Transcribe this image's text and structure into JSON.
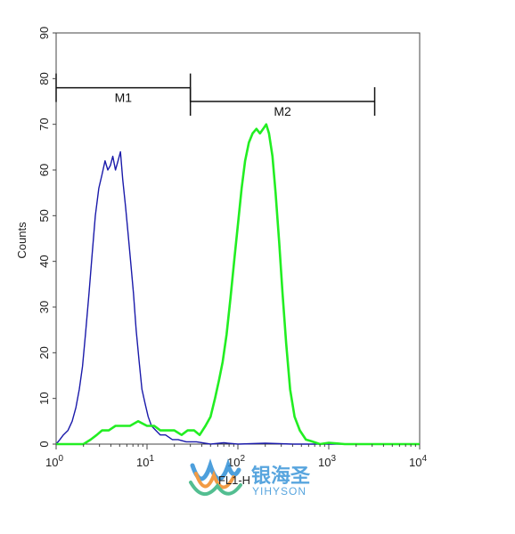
{
  "chart_data": {
    "type": "line",
    "xscale": "log",
    "xlim": [
      1,
      10000
    ],
    "ylim": [
      0,
      90
    ],
    "xlabel": "FL1-H",
    "ylabel": "Counts",
    "yticks": [
      "0",
      "10",
      "20",
      "30",
      "40",
      "50",
      "60",
      "70",
      "80",
      "90"
    ],
    "xticks": [
      {
        "value": 1,
        "base": "10",
        "exp": "0"
      },
      {
        "value": 10,
        "base": "10",
        "exp": "1"
      },
      {
        "value": 100,
        "base": "10",
        "exp": "2"
      },
      {
        "value": 1000,
        "base": "10",
        "exp": "3"
      },
      {
        "value": 10000,
        "base": "10",
        "exp": "4"
      }
    ],
    "gates": [
      {
        "label": "M1",
        "start": 1,
        "end": 30,
        "y": 78
      },
      {
        "label": "M2",
        "start": 30,
        "end": 3200,
        "y": 75
      }
    ],
    "series": [
      {
        "color": "#1a1aaa",
        "points": [
          [
            1.0,
            0
          ],
          [
            1.1,
            1
          ],
          [
            1.2,
            2
          ],
          [
            1.35,
            3
          ],
          [
            1.5,
            5
          ],
          [
            1.65,
            8
          ],
          [
            1.8,
            12
          ],
          [
            1.95,
            17
          ],
          [
            2.1,
            24
          ],
          [
            2.3,
            33
          ],
          [
            2.5,
            42
          ],
          [
            2.7,
            50
          ],
          [
            2.95,
            56
          ],
          [
            3.2,
            59
          ],
          [
            3.45,
            62
          ],
          [
            3.7,
            60
          ],
          [
            3.95,
            61
          ],
          [
            4.2,
            63
          ],
          [
            4.5,
            60
          ],
          [
            4.8,
            62
          ],
          [
            5.1,
            64
          ],
          [
            5.4,
            58
          ],
          [
            5.8,
            52
          ],
          [
            6.2,
            46
          ],
          [
            6.6,
            40
          ],
          [
            7.1,
            33
          ],
          [
            7.6,
            25
          ],
          [
            8.2,
            18
          ],
          [
            8.8,
            12
          ],
          [
            9.5,
            9
          ],
          [
            10.3,
            6
          ],
          [
            11.2,
            4
          ],
          [
            12.5,
            3
          ],
          [
            14,
            2
          ],
          [
            16,
            2
          ],
          [
            19,
            1
          ],
          [
            22,
            1
          ],
          [
            27,
            0.5
          ],
          [
            35,
            0.5
          ],
          [
            50,
            0
          ],
          [
            70,
            0.3
          ],
          [
            100,
            0
          ],
          [
            200,
            0.2
          ],
          [
            400,
            0
          ],
          [
            1000,
            0
          ],
          [
            10000,
            0
          ]
        ]
      },
      {
        "color": "#22ee22",
        "points": [
          [
            1.0,
            0
          ],
          [
            1.4,
            0
          ],
          [
            2.0,
            0
          ],
          [
            2.4,
            1
          ],
          [
            2.8,
            2
          ],
          [
            3.2,
            3
          ],
          [
            3.8,
            3
          ],
          [
            4.5,
            4
          ],
          [
            5.5,
            4
          ],
          [
            6.5,
            4
          ],
          [
            8,
            5
          ],
          [
            10,
            4
          ],
          [
            12,
            4
          ],
          [
            14,
            3
          ],
          [
            17,
            3
          ],
          [
            20,
            3
          ],
          [
            24,
            2
          ],
          [
            28,
            3
          ],
          [
            33,
            3
          ],
          [
            38,
            2
          ],
          [
            44,
            4
          ],
          [
            50,
            6
          ],
          [
            56,
            10
          ],
          [
            62,
            14
          ],
          [
            68,
            18
          ],
          [
            75,
            24
          ],
          [
            83,
            32
          ],
          [
            92,
            41
          ],
          [
            100,
            48
          ],
          [
            110,
            56
          ],
          [
            120,
            62
          ],
          [
            132,
            66
          ],
          [
            145,
            68
          ],
          [
            160,
            69
          ],
          [
            175,
            68
          ],
          [
            190,
            69
          ],
          [
            205,
            70
          ],
          [
            220,
            68
          ],
          [
            240,
            63
          ],
          [
            260,
            55
          ],
          [
            285,
            44
          ],
          [
            310,
            33
          ],
          [
            340,
            22
          ],
          [
            375,
            12
          ],
          [
            420,
            6
          ],
          [
            480,
            3
          ],
          [
            560,
            1
          ],
          [
            650,
            0.6
          ],
          [
            800,
            0
          ],
          [
            1000,
            0.3
          ],
          [
            1500,
            0
          ],
          [
            10000,
            0
          ]
        ]
      }
    ]
  },
  "watermark": {
    "chinese_text": "银海圣",
    "english_text": "YIHYSON",
    "colors": [
      "#2f8fd6",
      "#f08a24",
      "#36b37e"
    ]
  }
}
